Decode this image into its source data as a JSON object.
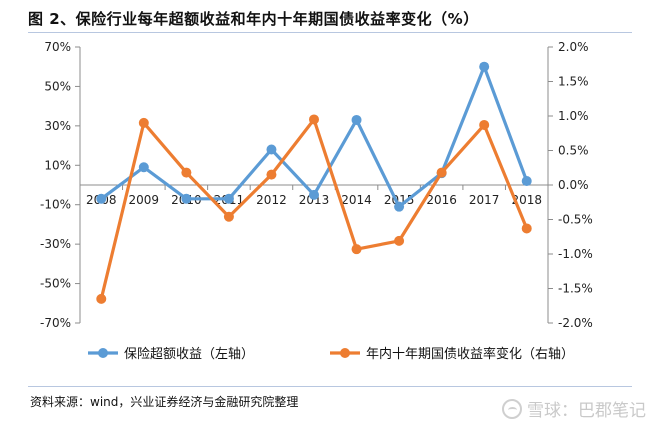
{
  "figure": {
    "title": "图 2、保险行业每年超额收益和年内十年期国债收益率变化（%）",
    "source": "资料来源：wind，兴业证券经济与金融研究院整理",
    "watermark": "雪球：巴郡笔记"
  },
  "chart_data": {
    "type": "line",
    "categories": [
      "2008",
      "2009",
      "2010",
      "2011",
      "2012",
      "2013",
      "2014",
      "2015",
      "2016",
      "2017",
      "2018"
    ],
    "series": [
      {
        "name": "保险超额收益（左轴）",
        "axis": "left",
        "color": "#5b9bd5",
        "values": [
          -7,
          9,
          -7,
          -7,
          18,
          -5,
          33,
          -11,
          6,
          60,
          2
        ]
      },
      {
        "name": "年内十年期国债收益率变化（右轴）",
        "axis": "right",
        "color": "#ed7d31",
        "values": [
          -1.65,
          0.9,
          0.18,
          -0.46,
          0.15,
          0.95,
          -0.93,
          -0.81,
          0.18,
          0.87,
          -0.63
        ]
      }
    ],
    "y_left": {
      "range": [
        -70,
        70
      ],
      "ticks": [
        70,
        50,
        30,
        10,
        -10,
        -30,
        -50,
        -70
      ],
      "tick_labels": [
        "70%",
        "50%",
        "30%",
        "10%",
        "-10%",
        "-30%",
        "-50%",
        "-70%"
      ]
    },
    "y_right": {
      "range": [
        -2.0,
        2.0
      ],
      "ticks": [
        2.0,
        1.5,
        1.0,
        0.5,
        0.0,
        -0.5,
        -1.0,
        -1.5,
        -2.0
      ],
      "tick_labels": [
        "2.0%",
        "1.5%",
        "1.0%",
        "0.5%",
        "0.0%",
        "-0.5%",
        "-1.0%",
        "-1.5%",
        "-2.0%"
      ]
    },
    "grid": false,
    "legend_position": "bottom"
  }
}
